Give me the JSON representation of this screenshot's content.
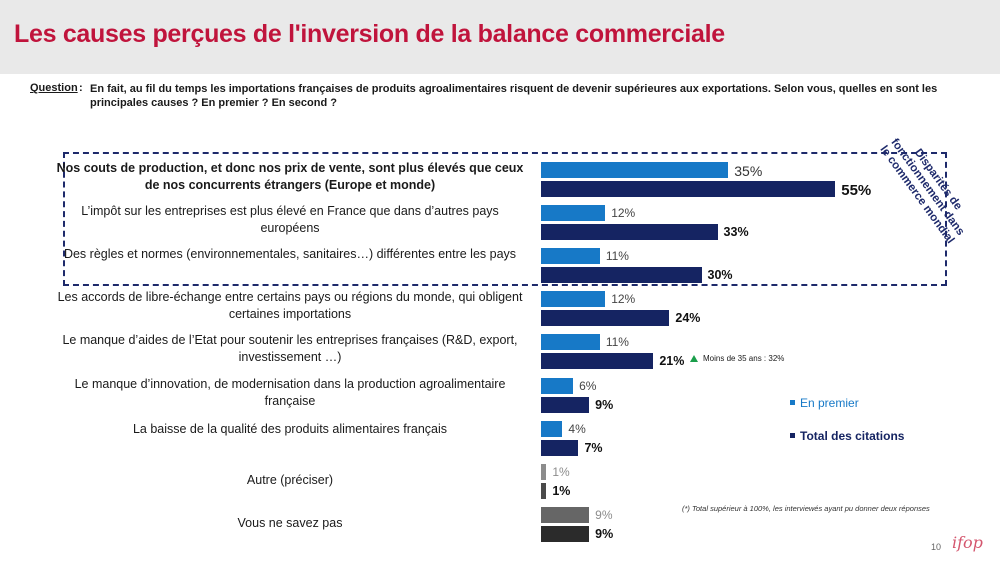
{
  "page": {
    "title": "Les causes perçues de l'inversion de la balance commerciale",
    "question_label": "Question",
    "question_colon": ":",
    "question_text": "En fait, au fil du temps les importations françaises de produits agroalimentaires risquent de devenir supérieures aux exportations. Selon vous, quelles en sont les principales causes ? En premier ? En second ?",
    "box_note": "Disparités de fonctionnement dans le commerce mondial",
    "age_note": "Moins de 35 ans : 32%",
    "footnote": "(*) Total supérieur à 100%, les interviewés ayant pu donner deux réponses",
    "page_number": "10",
    "logo_text": "ifop"
  },
  "colors": {
    "title_red": "#c0143c",
    "first_blue": "#1779c7",
    "total_navy": "#152462",
    "other_first_grey": "#8c8c8c",
    "other_total_grey": "#4a4a4a",
    "unknown_first_grey": "#666666",
    "unknown_total_grey": "#2b2b2b",
    "up_arrow_green": "#1a9e4a"
  },
  "chart_data": {
    "type": "bar",
    "orientation": "horizontal",
    "categories": [
      "Nos couts de production, et donc nos prix de vente, sont plus élevés que ceux de nos concurrents étrangers (Europe et monde)",
      "L’impôt sur les entreprises est plus élevé en France que dans d’autres pays européens",
      "Des règles et normes (environnementales, sanitaires…) différentes entre les pays",
      "Les accords de libre-échange entre certains pays ou régions du monde, qui obligent certaines importations",
      "Le manque d’aides de l’Etat pour soutenir les entreprises françaises (R&D, export, investissement …)",
      "Le manque d’innovation, de modernisation dans la production agroalimentaire française",
      "La baisse de la qualité des produits alimentaires français",
      "Autre (préciser)",
      "Vous ne savez pas"
    ],
    "series": [
      {
        "name": "En premier",
        "values": [
          35,
          12,
          11,
          12,
          11,
          6,
          4,
          1,
          9
        ],
        "labels": [
          "35%",
          "12%",
          "11%",
          "12%",
          "11%",
          "6%",
          "4%",
          "1%",
          "9%"
        ]
      },
      {
        "name": "Total des citations",
        "values": [
          55,
          33,
          30,
          24,
          21,
          9,
          7,
          1,
          9
        ],
        "labels": [
          "55%",
          "33%",
          "30%",
          "24%",
          "21%",
          "9%",
          "7%",
          "1%",
          "9%"
        ]
      }
    ],
    "xlim": [
      0,
      100
    ],
    "legend_position": "right"
  }
}
